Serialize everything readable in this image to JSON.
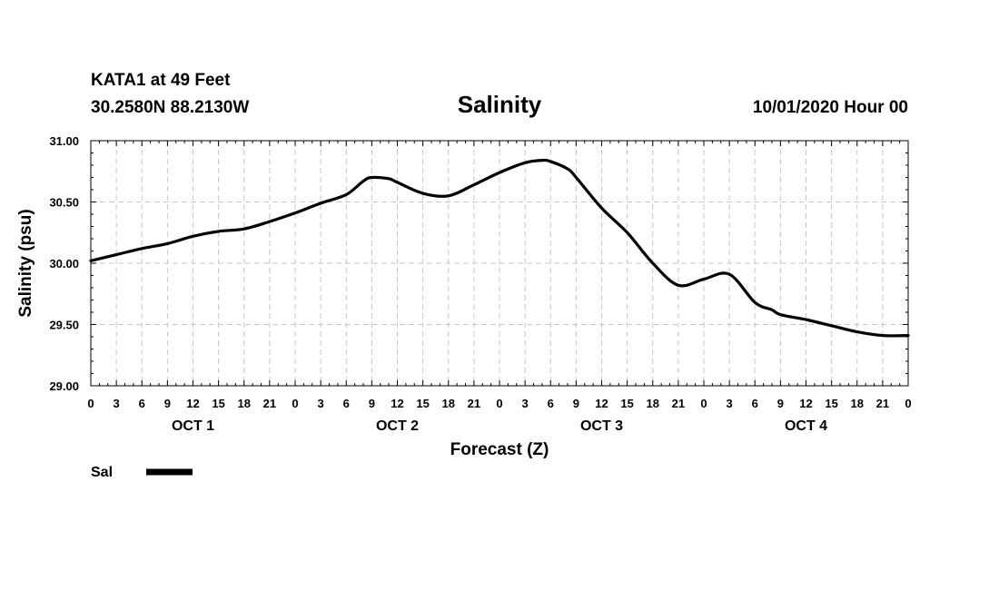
{
  "header": {
    "station": "KATA1 at 49 Feet",
    "coords": "30.2580N 88.2130W",
    "title": "Salinity",
    "datetime": "10/01/2020 Hour 00"
  },
  "legend": {
    "label": "Sal"
  },
  "chart_data": {
    "type": "line",
    "title": "Salinity",
    "xlabel": "Forecast (Z)",
    "ylabel": "Salinity (psu)",
    "ylim": [
      29.0,
      31.0
    ],
    "xlim_hours": [
      0,
      96
    ],
    "y_ticks": [
      "29.00",
      "29.50",
      "30.00",
      "30.50",
      "31.00"
    ],
    "y_tick_values": [
      29.0,
      29.5,
      30.0,
      30.5,
      31.0
    ],
    "x_tick_labels": [
      "0",
      "3",
      "6",
      "9",
      "12",
      "15",
      "18",
      "21",
      "0",
      "3",
      "6",
      "9",
      "12",
      "15",
      "18",
      "21",
      "0",
      "3",
      "6",
      "9",
      "12",
      "15",
      "18",
      "21",
      "0",
      "3",
      "6",
      "9",
      "12",
      "15",
      "18",
      "21",
      "0"
    ],
    "day_labels": [
      "OCT 1",
      "OCT 2",
      "OCT 3",
      "OCT 4"
    ],
    "grid": true,
    "line_color": "#000000",
    "series": [
      {
        "name": "Sal",
        "x": [
          0,
          3,
          6,
          9,
          12,
          15,
          18,
          21,
          24,
          27,
          30,
          32,
          33,
          35,
          36,
          39,
          42,
          45,
          48,
          51,
          53,
          54,
          56,
          57,
          60,
          63,
          66,
          69,
          72,
          75,
          78,
          80,
          81,
          84,
          87,
          90,
          93,
          96
        ],
        "values": [
          30.02,
          30.07,
          30.12,
          30.16,
          30.22,
          30.26,
          30.28,
          30.34,
          30.41,
          30.49,
          30.56,
          30.67,
          30.7,
          30.69,
          30.66,
          30.57,
          30.55,
          30.64,
          30.74,
          30.82,
          30.84,
          30.83,
          30.77,
          30.7,
          30.45,
          30.25,
          30.0,
          29.82,
          29.87,
          29.91,
          29.68,
          29.62,
          29.58,
          29.54,
          29.49,
          29.44,
          29.41,
          29.41
        ]
      }
    ]
  }
}
